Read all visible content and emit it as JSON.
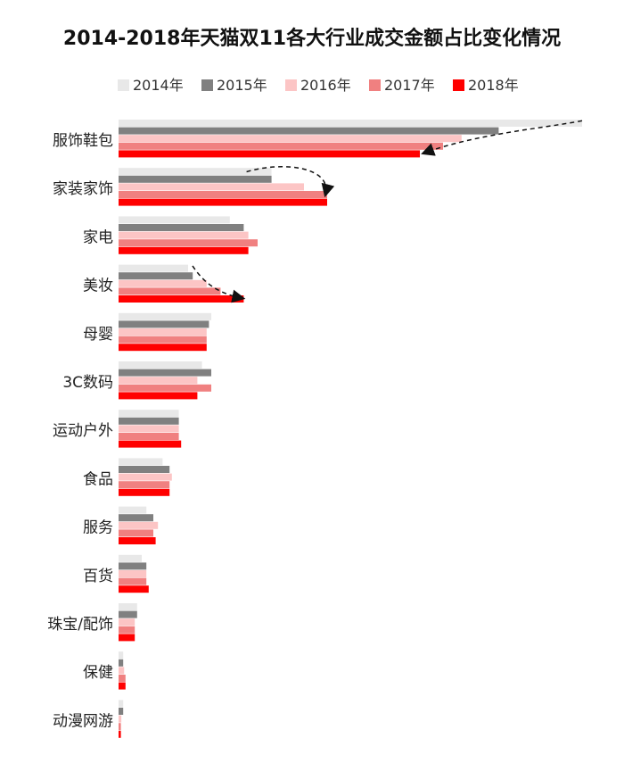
{
  "chart_data": {
    "type": "bar",
    "orientation": "horizontal",
    "title": "2014-2018年天猫双11各大行业成交金额占比变化情况",
    "xlabel": "",
    "ylabel": "",
    "legend_position": "top",
    "grid": false,
    "xlim": [
      0,
      100
    ],
    "categories": [
      "服饰鞋包",
      "家装家饰",
      "家电",
      "美妆",
      "母婴",
      "3C数码",
      "运动户外",
      "食品",
      "服务",
      "百货",
      "珠宝/配饰",
      "保健",
      "动漫网游"
    ],
    "series": [
      {
        "name": "2014年",
        "color": "#e8e8e8",
        "values": [
          100,
          33,
          24,
          15,
          20,
          18,
          13,
          9.5,
          6,
          5,
          4,
          1,
          1
        ]
      },
      {
        "name": "2015年",
        "color": "#808080",
        "values": [
          82,
          33,
          27,
          16,
          19.5,
          20,
          13,
          11,
          7.5,
          6,
          4,
          1,
          1
        ]
      },
      {
        "name": "2016年",
        "color": "#fcc5c5",
        "values": [
          74,
          40,
          28,
          19,
          19,
          17,
          13,
          11.5,
          8.5,
          6,
          3.5,
          1.2,
          0.6
        ]
      },
      {
        "name": "2017年",
        "color": "#f08080",
        "values": [
          70,
          45,
          30,
          22,
          19,
          20,
          13,
          11,
          7.5,
          6,
          3.5,
          1.5,
          0.5
        ]
      },
      {
        "name": "2018年",
        "color": "#ff0000",
        "values": [
          65,
          45,
          28,
          27,
          19,
          17,
          13.5,
          11,
          8,
          6.5,
          3.5,
          1.5,
          0.5
        ]
      }
    ]
  }
}
